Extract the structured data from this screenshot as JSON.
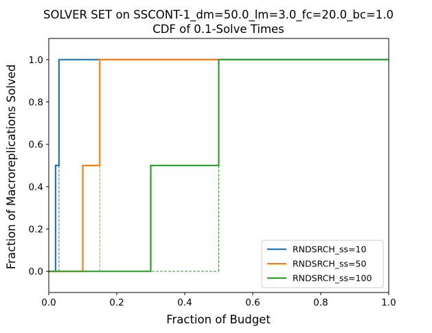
{
  "chart_data": {
    "type": "line",
    "title": "SOLVER SET on SSCONT-1_dm=50.0_lm=3.0_fc=20.0_bc=1.0",
    "subtitle": "CDF of 0.1-Solve Times",
    "xlabel": "Fraction of Budget",
    "ylabel": "Fraction of Macroreplications Solved",
    "xlim": [
      0,
      1
    ],
    "ylim": [
      -0.1,
      1.1
    ],
    "xticks": [
      "0.0",
      "0.2",
      "0.4",
      "0.6",
      "0.8",
      "1.0"
    ],
    "yticks": [
      "0.0",
      "0.2",
      "0.4",
      "0.6",
      "0.8",
      "1.0"
    ],
    "grid": false,
    "legend_position": "lower-right",
    "series": [
      {
        "name": "RNDSRCH_ss=10",
        "color": "#1f77b4",
        "step_x": [
          0,
          0.02,
          0.02,
          0.03,
          0.03,
          1.0
        ],
        "step_y": [
          0,
          0,
          0.5,
          0.5,
          1.0,
          1.0
        ],
        "median": 0.03
      },
      {
        "name": "RNDSRCH_ss=50",
        "color": "#ff7f0e",
        "step_x": [
          0,
          0.1,
          0.1,
          0.15,
          0.15,
          1.0
        ],
        "step_y": [
          0,
          0,
          0.5,
          0.5,
          1.0,
          1.0
        ],
        "median": 0.15
      },
      {
        "name": "RNDSRCH_ss=100",
        "color": "#2ca02c",
        "step_x": [
          0,
          0.3,
          0.3,
          0.5,
          0.5,
          1.0
        ],
        "step_y": [
          0,
          0,
          0.5,
          0.5,
          1.0,
          1.0
        ],
        "median": 0.5
      }
    ]
  }
}
